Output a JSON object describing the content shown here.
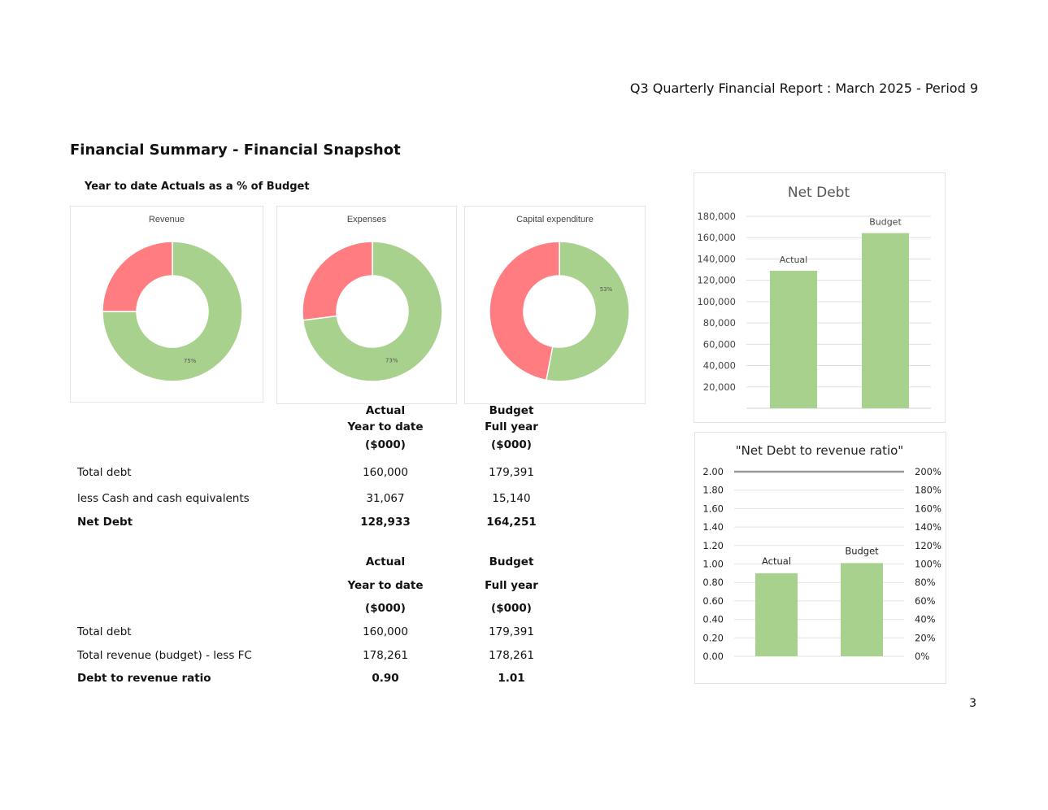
{
  "header": "Q3 Quarterly Financial Report :  March 2025 - Period 9",
  "title": "Financial Summary - Financial Snapshot",
  "subtitle": "Year to date Actuals as a % of Budget",
  "page_number": "3",
  "colors": {
    "green": "#a9d18e",
    "red": "#ff7c80",
    "axis_line": "#999999"
  },
  "table1": {
    "head_actual": [
      "Actual",
      "Year to date",
      "($000)"
    ],
    "head_budget": [
      "Budget",
      "Full year",
      "($000)"
    ],
    "rows": [
      {
        "label": "Total debt",
        "actual": "160,000",
        "budget": "179,391",
        "bold": false
      },
      {
        "label": "less Cash and cash equivalents",
        "actual": "31,067",
        "budget": "15,140",
        "bold": false
      },
      {
        "label": "Net Debt",
        "actual": "128,933",
        "budget": "164,251",
        "bold": true
      }
    ]
  },
  "table2": {
    "head_actual": [
      "Actual",
      "Year to date",
      "($000)"
    ],
    "head_budget": [
      "Budget",
      "Full year",
      "($000)"
    ],
    "rows": [
      {
        "label": "Total debt",
        "actual": "160,000",
        "budget": "179,391",
        "bold": false
      },
      {
        "label": "Total revenue (budget) - less FC",
        "actual": "178,261",
        "budget": "178,261",
        "bold": false
      },
      {
        "label": "Debt to revenue ratio",
        "actual": "0.90",
        "budget": "1.01",
        "bold": true
      }
    ]
  },
  "chart_data": [
    {
      "type": "pie",
      "title": "Revenue",
      "values": [
        75,
        25
      ],
      "data_label": "75%"
    },
    {
      "type": "pie",
      "title": "Expenses",
      "values": [
        73,
        27
      ],
      "data_label": "73%"
    },
    {
      "type": "pie",
      "title": "Capital expenditure",
      "values": [
        53,
        47
      ],
      "data_label": "53%"
    },
    {
      "type": "bar",
      "title": "Net Debt",
      "categories": [
        "Actual",
        "Budget"
      ],
      "values": [
        128933,
        164251
      ],
      "ylim": [
        0,
        180000
      ],
      "yticks": [
        "20,000",
        "40,000",
        "60,000",
        "80,000",
        "100,000",
        "120,000",
        "140,000",
        "160,000",
        "180,000"
      ],
      "grid": true
    },
    {
      "type": "bar",
      "title": "\"Net Debt to revenue ratio\"",
      "categories": [
        "Actual",
        "Budget"
      ],
      "values": [
        0.9,
        1.01
      ],
      "ylim": [
        0,
        2
      ],
      "yticks": [
        "0.00",
        "0.20",
        "0.40",
        "0.60",
        "0.80",
        "1.00",
        "1.20",
        "1.40",
        "1.60",
        "1.80",
        "2.00"
      ],
      "y2ticks": [
        "0%",
        "20%",
        "40%",
        "60%",
        "80%",
        "100%",
        "120%",
        "140%",
        "160%",
        "180%",
        "200%"
      ],
      "line_value": 2.0,
      "grid": true
    }
  ]
}
